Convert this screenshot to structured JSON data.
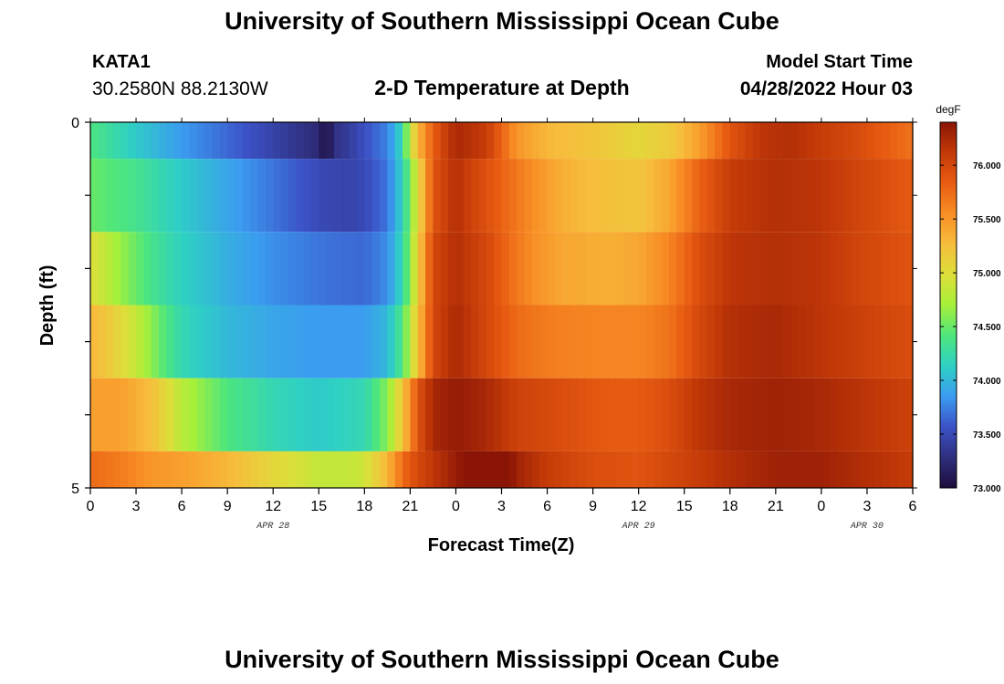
{
  "header": {
    "title": "University of Southern Mississippi Ocean Cube",
    "station_name": "KATA1",
    "station_coords": "30.2580N  88.2130W",
    "chart_title": "2-D Temperature at Depth",
    "model_start_label": "Model Start Time",
    "model_start_time": "04/28/2022 Hour 03"
  },
  "footer": {
    "title": "University of Southern Mississippi Ocean Cube"
  },
  "chart_data": {
    "type": "heatmap",
    "title": "2-D Temperature at Depth",
    "xlabel": "Forecast Time(Z)",
    "ylabel": "Depth (ft)",
    "x_range_hours": [
      0,
      54
    ],
    "x_tick_labels": [
      "0",
      "3",
      "6",
      "9",
      "12",
      "15",
      "18",
      "21",
      "0",
      "3",
      "6",
      "9",
      "12",
      "15",
      "18",
      "21",
      "0",
      "3",
      "6"
    ],
    "date_labels": [
      {
        "label": "APR 28",
        "hour": 12
      },
      {
        "label": "APR 29",
        "hour": 36
      },
      {
        "label": "APR 30",
        "hour": 51
      }
    ],
    "y_range": [
      0,
      5
    ],
    "y_tick_labels": [
      "0",
      "5"
    ],
    "y_minor_ticks": 6,
    "colorbar": {
      "unit": "degF",
      "min": 73.0,
      "max": 76.4,
      "tick_values": [
        73.0,
        73.5,
        74.0,
        74.5,
        75.0,
        75.5,
        76.0
      ],
      "tick_labels": [
        "73.000",
        "73.500",
        "74.000",
        "74.500",
        "75.000",
        "75.500",
        "76.000"
      ],
      "colors": [
        "#1e0c3c",
        "#2f2f7e",
        "#3c52c7",
        "#3b9cf0",
        "#2ed0c4",
        "#4ee67c",
        "#a6f03a",
        "#ddde3a",
        "#f7bd3c",
        "#f88e25",
        "#e85c12",
        "#c43a08",
        "#8a1506"
      ]
    },
    "depth_layers": [
      {
        "depth_range": [
          0,
          0.5
        ],
        "points": [
          [
            0,
            74.4
          ],
          [
            3,
            74.1
          ],
          [
            6,
            73.85
          ],
          [
            9,
            73.65
          ],
          [
            12,
            73.45
          ],
          [
            14,
            73.3
          ],
          [
            15,
            73.25
          ],
          [
            15.5,
            73.0
          ],
          [
            16,
            73.3
          ],
          [
            17,
            73.4
          ],
          [
            18,
            73.55
          ],
          [
            19.5,
            73.75
          ],
          [
            20.5,
            74.2
          ],
          [
            21,
            74.9
          ],
          [
            22,
            75.6
          ],
          [
            23,
            76.0
          ],
          [
            24,
            76.25
          ],
          [
            26,
            76.1
          ],
          [
            27,
            75.8
          ],
          [
            28,
            75.5
          ],
          [
            30,
            75.3
          ],
          [
            33,
            75.2
          ],
          [
            36,
            75.05
          ],
          [
            38,
            75.15
          ],
          [
            40,
            75.45
          ],
          [
            42,
            75.9
          ],
          [
            44,
            76.15
          ],
          [
            46,
            76.2
          ],
          [
            48,
            76.1
          ],
          [
            50,
            76.0
          ],
          [
            52,
            75.85
          ],
          [
            54,
            75.7
          ]
        ]
      },
      {
        "depth_range": [
          0.5,
          1.5
        ],
        "points": [
          [
            0,
            74.5
          ],
          [
            3,
            74.35
          ],
          [
            6,
            74.1
          ],
          [
            9,
            73.9
          ],
          [
            12,
            73.7
          ],
          [
            15,
            73.5
          ],
          [
            17,
            73.45
          ],
          [
            18,
            73.5
          ],
          [
            19.5,
            73.7
          ],
          [
            20.5,
            74.15
          ],
          [
            21.5,
            75.0
          ],
          [
            22.5,
            75.9
          ],
          [
            24,
            76.2
          ],
          [
            25,
            76.05
          ],
          [
            27,
            75.8
          ],
          [
            29,
            75.55
          ],
          [
            31,
            75.35
          ],
          [
            33,
            75.25
          ],
          [
            36,
            75.2
          ],
          [
            38,
            75.4
          ],
          [
            40,
            75.8
          ],
          [
            42,
            76.1
          ],
          [
            45,
            76.2
          ],
          [
            48,
            76.15
          ],
          [
            51,
            76.0
          ],
          [
            54,
            75.85
          ]
        ]
      },
      {
        "depth_range": [
          1.5,
          2.5
        ],
        "points": [
          [
            0,
            75.0
          ],
          [
            2,
            74.65
          ],
          [
            4,
            74.35
          ],
          [
            6,
            74.15
          ],
          [
            9,
            73.95
          ],
          [
            12,
            73.8
          ],
          [
            15,
            73.7
          ],
          [
            18,
            73.65
          ],
          [
            19.5,
            73.8
          ],
          [
            20.5,
            74.2
          ],
          [
            21.5,
            75.1
          ],
          [
            22.5,
            76.0
          ],
          [
            24,
            76.2
          ],
          [
            26,
            76.0
          ],
          [
            27.5,
            75.75
          ],
          [
            29,
            75.55
          ],
          [
            31,
            75.4
          ],
          [
            34,
            75.35
          ],
          [
            36,
            75.4
          ],
          [
            38,
            75.6
          ],
          [
            40,
            75.95
          ],
          [
            42,
            76.15
          ],
          [
            45,
            76.2
          ],
          [
            48,
            76.15
          ],
          [
            51,
            76.0
          ],
          [
            54,
            75.9
          ]
        ]
      },
      {
        "depth_range": [
          2.5,
          3.5
        ],
        "points": [
          [
            0,
            75.3
          ],
          [
            1,
            75.2
          ],
          [
            3,
            74.85
          ],
          [
            5,
            74.4
          ],
          [
            6,
            74.2
          ],
          [
            9,
            74.0
          ],
          [
            12,
            73.9
          ],
          [
            15,
            73.85
          ],
          [
            18,
            73.85
          ],
          [
            19.5,
            74.0
          ],
          [
            20.5,
            74.4
          ],
          [
            21.5,
            75.2
          ],
          [
            22.5,
            76.0
          ],
          [
            24,
            76.25
          ],
          [
            26,
            76.0
          ],
          [
            28,
            75.75
          ],
          [
            30,
            75.65
          ],
          [
            33,
            75.6
          ],
          [
            36,
            75.6
          ],
          [
            38,
            75.7
          ],
          [
            40,
            76.0
          ],
          [
            42,
            76.2
          ],
          [
            45,
            76.25
          ],
          [
            48,
            76.15
          ],
          [
            51,
            76.05
          ],
          [
            54,
            75.95
          ]
        ]
      },
      {
        "depth_range": [
          3.5,
          4.5
        ],
        "points": [
          [
            0,
            75.45
          ],
          [
            2,
            75.45
          ],
          [
            4,
            75.25
          ],
          [
            6,
            74.8
          ],
          [
            9,
            74.4
          ],
          [
            12,
            74.2
          ],
          [
            15,
            74.1
          ],
          [
            18,
            74.2
          ],
          [
            19.5,
            74.6
          ],
          [
            20.5,
            75.2
          ],
          [
            21.5,
            75.9
          ],
          [
            22.5,
            76.25
          ],
          [
            24,
            76.35
          ],
          [
            26,
            76.25
          ],
          [
            28,
            76.05
          ],
          [
            31,
            75.95
          ],
          [
            34,
            75.85
          ],
          [
            36,
            75.85
          ],
          [
            38,
            75.95
          ],
          [
            40,
            76.15
          ],
          [
            42,
            76.25
          ],
          [
            45,
            76.3
          ],
          [
            48,
            76.25
          ],
          [
            51,
            76.15
          ],
          [
            54,
            76.05
          ]
        ]
      },
      {
        "depth_range": [
          4.5,
          5
        ],
        "points": [
          [
            0,
            75.75
          ],
          [
            2,
            75.65
          ],
          [
            4,
            75.5
          ],
          [
            6,
            75.45
          ],
          [
            9,
            75.3
          ],
          [
            12,
            75.05
          ],
          [
            15,
            74.85
          ],
          [
            17,
            74.85
          ],
          [
            18,
            74.9
          ],
          [
            19.5,
            75.3
          ],
          [
            20.5,
            75.75
          ],
          [
            21.5,
            76.0
          ],
          [
            23,
            76.2
          ],
          [
            24.5,
            76.4
          ],
          [
            25,
            76.6
          ],
          [
            26,
            76.7
          ],
          [
            27,
            76.55
          ],
          [
            28,
            76.3
          ],
          [
            30,
            76.1
          ],
          [
            33,
            75.95
          ],
          [
            36,
            75.9
          ],
          [
            39,
            76.05
          ],
          [
            42,
            76.2
          ],
          [
            45,
            76.3
          ],
          [
            48,
            76.3
          ],
          [
            51,
            76.2
          ],
          [
            54,
            76.1
          ]
        ]
      }
    ]
  }
}
